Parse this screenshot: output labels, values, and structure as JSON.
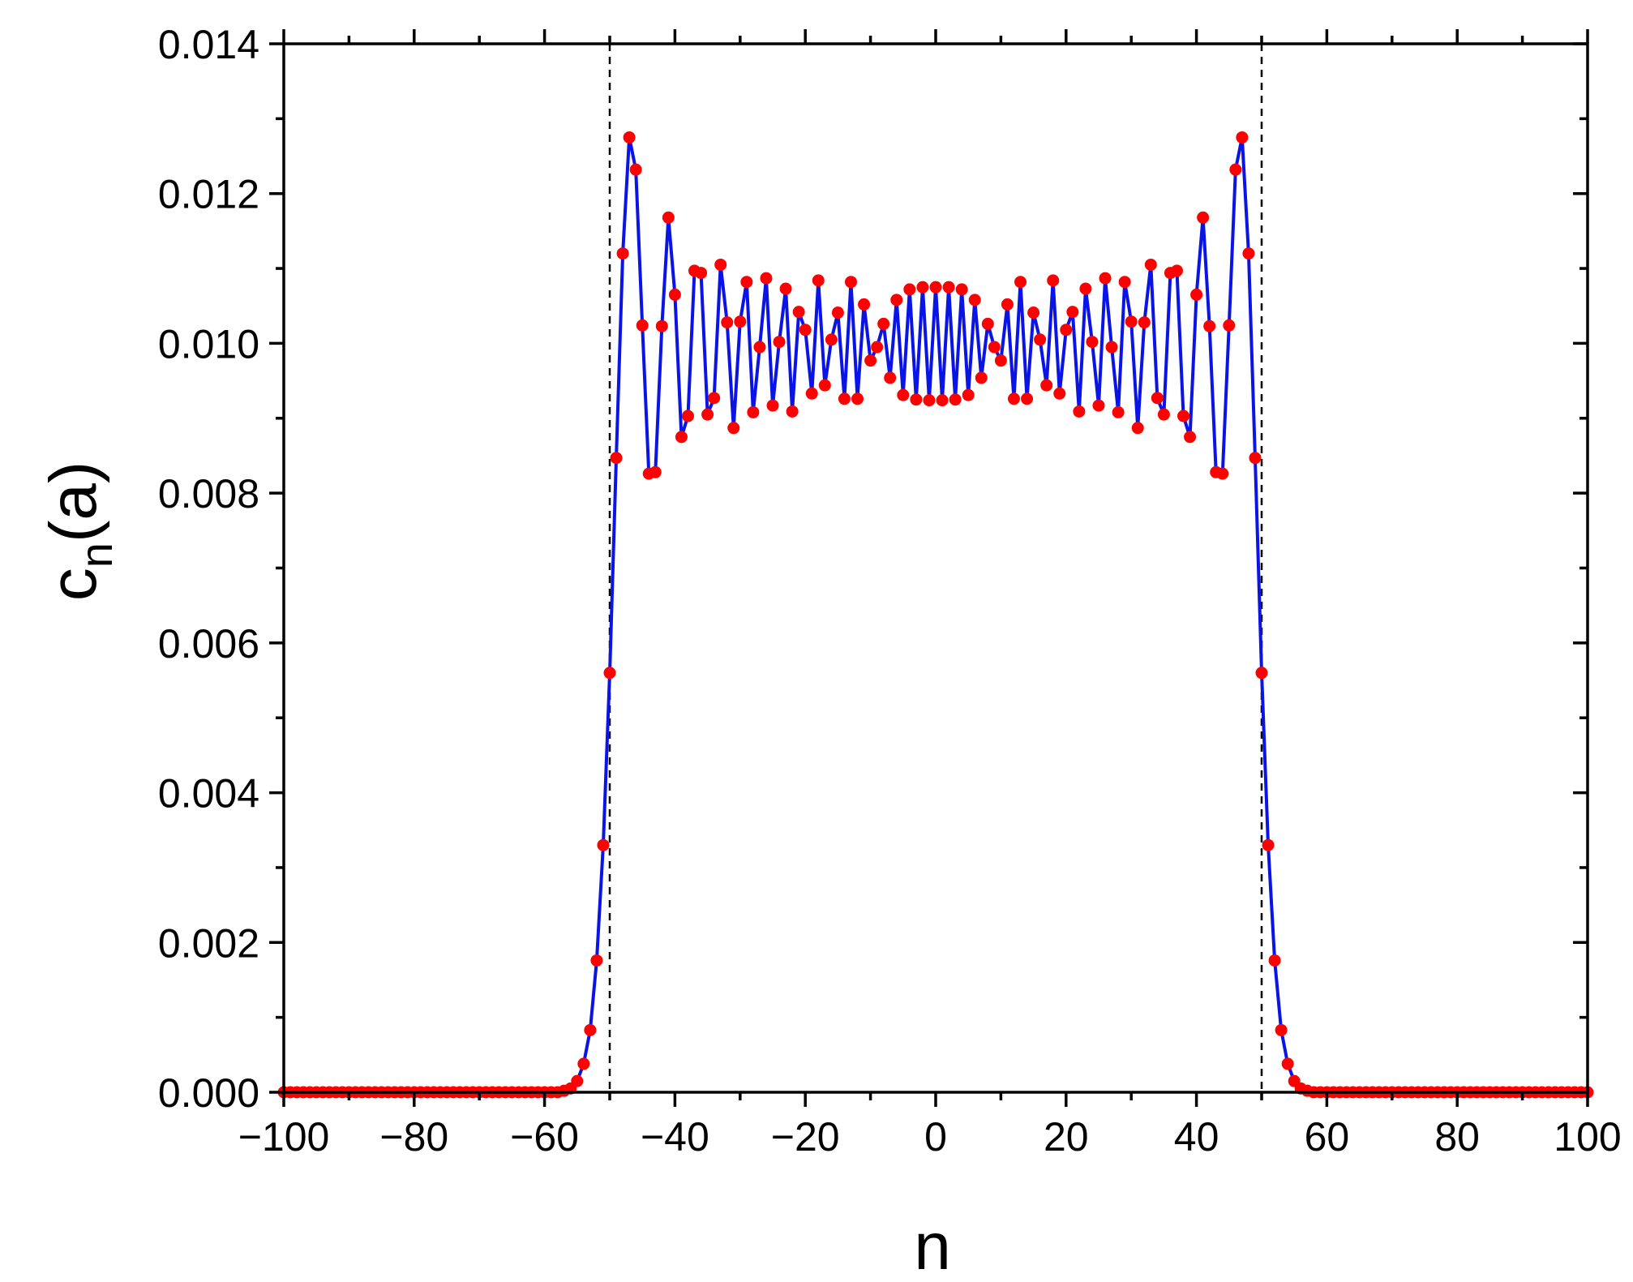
{
  "chart_data": {
    "type": "line",
    "title": "",
    "xlabel": "n",
    "ylabel": {
      "main": "c",
      "sub": "n",
      "tail": "(a)"
    },
    "xlim": [
      -100,
      100
    ],
    "ylim": [
      0,
      0.014
    ],
    "x_ticks": [
      -100,
      -80,
      -60,
      -40,
      -20,
      0,
      20,
      40,
      60,
      80,
      100
    ],
    "x_tick_labels": [
      "−100",
      "−80",
      "−60",
      "−40",
      "−20",
      "0",
      "20",
      "40",
      "60",
      "80",
      "100"
    ],
    "x_minor_ticks": [
      -90,
      -70,
      -50,
      -30,
      -10,
      10,
      30,
      50,
      70,
      90
    ],
    "y_ticks": [
      0,
      0.002,
      0.004,
      0.006,
      0.008,
      0.01,
      0.012,
      0.014
    ],
    "y_tick_labels": [
      "0.000",
      "0.002",
      "0.004",
      "0.006",
      "0.008",
      "0.010",
      "0.012",
      "0.014"
    ],
    "y_minor_ticks": [
      0.001,
      0.003,
      0.005,
      0.007,
      0.009,
      0.011,
      0.013
    ],
    "grid": false,
    "legend": "none",
    "reference_lines": [
      {
        "axis": "x",
        "value": -50,
        "style": "dashed",
        "color": "#000000"
      },
      {
        "axis": "x",
        "value": 50,
        "style": "dashed",
        "color": "#000000"
      }
    ],
    "series": [
      {
        "line_color": "#0a14e6",
        "marker_color": "#ff0000",
        "x": [
          -100,
          -99,
          -98,
          -97,
          -96,
          -95,
          -94,
          -93,
          -92,
          -91,
          -90,
          -89,
          -88,
          -87,
          -86,
          -85,
          -84,
          -83,
          -82,
          -81,
          -80,
          -79,
          -78,
          -77,
          -76,
          -75,
          -74,
          -73,
          -72,
          -71,
          -70,
          -69,
          -68,
          -67,
          -66,
          -65,
          -64,
          -63,
          -62,
          -61,
          -60,
          -59,
          -58,
          -57,
          -56,
          -55,
          -54,
          -53,
          -52,
          -51,
          -50,
          -49,
          -48,
          -47,
          -46,
          -45,
          -44,
          -43,
          -42,
          -41,
          -40,
          -39,
          -38,
          -37,
          -36,
          -35,
          -34,
          -33,
          -32,
          -31,
          -30,
          -29,
          -28,
          -27,
          -26,
          -25,
          -24,
          -23,
          -22,
          -21,
          -20,
          -19,
          -18,
          -17,
          -16,
          -15,
          -14,
          -13,
          -12,
          -11,
          -10,
          -9,
          -8,
          -7,
          -6,
          -5,
          -4,
          -3,
          -2,
          -1,
          0,
          1,
          2,
          3,
          4,
          5,
          6,
          7,
          8,
          9,
          10,
          11,
          12,
          13,
          14,
          15,
          16,
          17,
          18,
          19,
          20,
          21,
          22,
          23,
          24,
          25,
          26,
          27,
          28,
          29,
          30,
          31,
          32,
          33,
          34,
          35,
          36,
          37,
          38,
          39,
          40,
          41,
          42,
          43,
          44,
          45,
          46,
          47,
          48,
          49,
          50,
          51,
          52,
          53,
          54,
          55,
          56,
          57,
          58,
          59,
          60,
          61,
          62,
          63,
          64,
          65,
          66,
          67,
          68,
          69,
          70,
          71,
          72,
          73,
          74,
          75,
          76,
          77,
          78,
          79,
          80,
          81,
          82,
          83,
          84,
          85,
          86,
          87,
          88,
          89,
          90,
          91,
          92,
          93,
          94,
          95,
          96,
          97,
          98,
          99,
          100
        ],
        "y": [
          0,
          0,
          0,
          0,
          0,
          0,
          0,
          0,
          0,
          0,
          0,
          0,
          0,
          0,
          0,
          0,
          0,
          0,
          0,
          0,
          0,
          0,
          0,
          0,
          0,
          0,
          0,
          0,
          0,
          0,
          0,
          0,
          0,
          0,
          0,
          0,
          0,
          0,
          0,
          0,
          0,
          0,
          0,
          2e-05,
          5e-05,
          0.00015,
          0.00038,
          0.00083,
          0.00176,
          0.0033,
          0.0056,
          0.00847,
          0.0112,
          0.01275,
          0.01232,
          0.01024,
          0.00826,
          0.00828,
          0.01023,
          0.01168,
          0.01065,
          0.00875,
          0.00903,
          0.01097,
          0.01094,
          0.00905,
          0.00927,
          0.01105,
          0.01028,
          0.00887,
          0.01029,
          0.01082,
          0.00908,
          0.00995,
          0.01087,
          0.00917,
          0.01002,
          0.01073,
          0.00909,
          0.01042,
          0.01018,
          0.00933,
          0.01084,
          0.00944,
          0.01005,
          0.01041,
          0.00926,
          0.01082,
          0.00926,
          0.01052,
          0.00977,
          0.00995,
          0.01026,
          0.00954,
          0.01058,
          0.00931,
          0.01072,
          0.00925,
          0.01075,
          0.00924,
          0.01075,
          0.00924,
          0.01075,
          0.00925,
          0.01072,
          0.00931,
          0.01058,
          0.00954,
          0.01026,
          0.00995,
          0.00977,
          0.01052,
          0.00926,
          0.01082,
          0.00926,
          0.01041,
          0.01005,
          0.00944,
          0.01084,
          0.00933,
          0.01018,
          0.01042,
          0.00909,
          0.01073,
          0.01002,
          0.00917,
          0.01087,
          0.00995,
          0.00908,
          0.01082,
          0.01029,
          0.00887,
          0.01028,
          0.01105,
          0.00927,
          0.00905,
          0.01094,
          0.01097,
          0.00903,
          0.00875,
          0.01065,
          0.01168,
          0.01023,
          0.00828,
          0.00826,
          0.01024,
          0.01232,
          0.01275,
          0.0112,
          0.00847,
          0.0056,
          0.0033,
          0.00176,
          0.00083,
          0.00038,
          0.00015,
          5e-05,
          2e-05,
          0,
          0,
          0,
          0,
          0,
          0,
          0,
          0,
          0,
          0,
          0,
          0,
          0,
          0,
          0,
          0,
          0,
          0,
          0,
          0,
          0,
          0,
          0,
          0,
          0,
          0,
          0,
          0,
          0,
          0,
          0,
          0,
          0,
          0,
          0,
          0,
          0,
          0,
          0,
          0,
          0,
          0,
          0
        ]
      }
    ]
  }
}
